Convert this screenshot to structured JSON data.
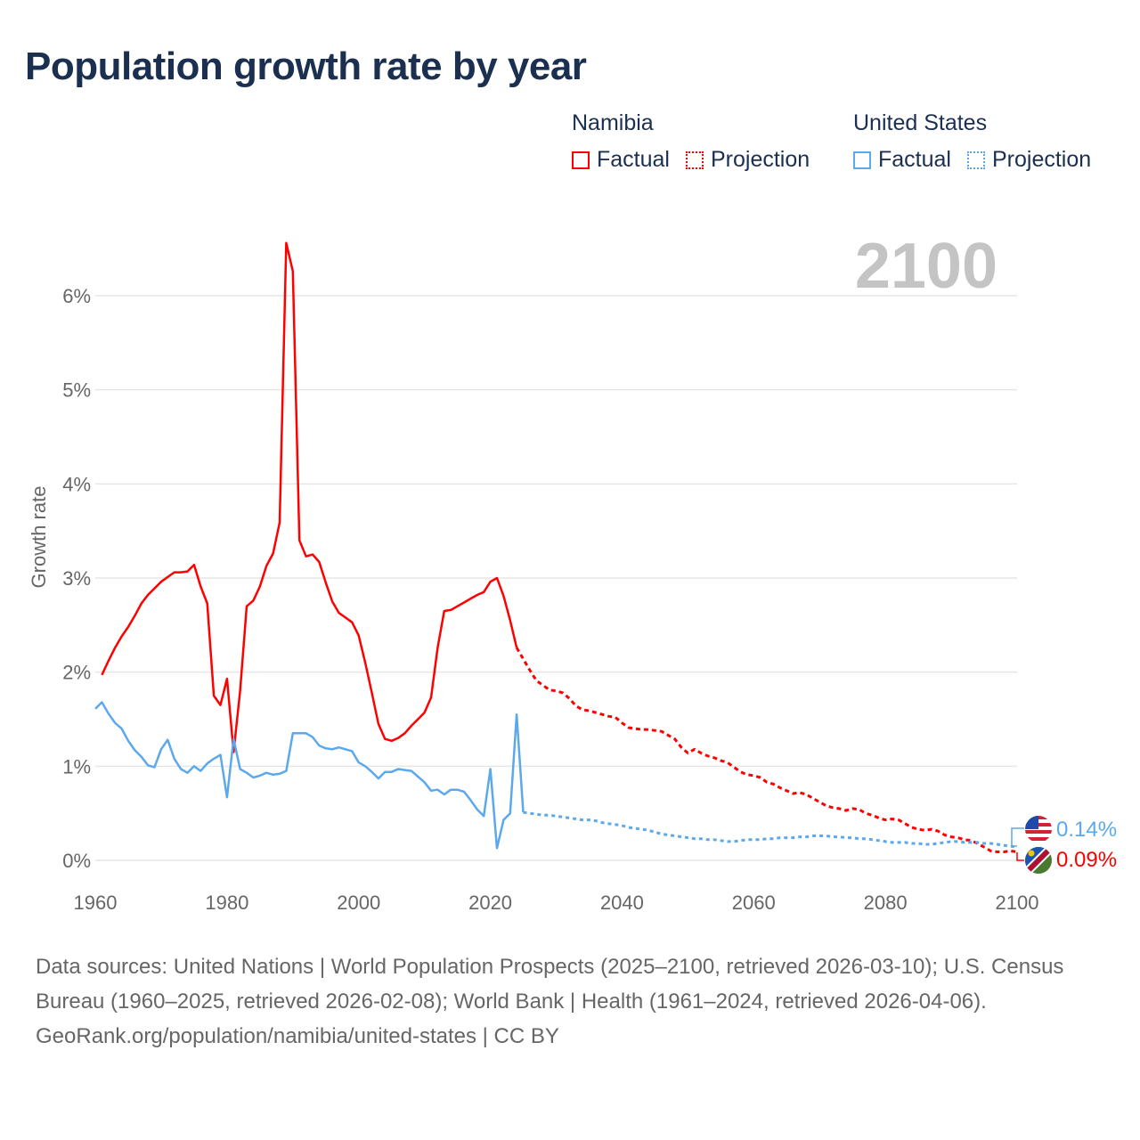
{
  "title": "Population growth rate by year",
  "legend": {
    "groups": [
      {
        "name": "Namibia",
        "factual": "Factual",
        "projection": "Projection",
        "color": "#ff0000"
      },
      {
        "name": "United States",
        "factual": "Factual",
        "projection": "Projection",
        "color": "#5ca8ec"
      }
    ]
  },
  "year_watermark": "2100",
  "end_labels": {
    "us": "0.14%",
    "namibia": "0.09%"
  },
  "footer": {
    "sources": "Data sources: United Nations | World Population Prospects (2025–2100, retrieved 2026-03-10); U.S. Census Bureau (1960–2025, retrieved 2026-02-08); World Bank | Health (1961–2024, retrieved 2026-04-06).",
    "credit": "GeoRank.org/population/namibia/united-states | CC BY"
  },
  "chart_data": {
    "type": "line",
    "title": "Population growth rate by year",
    "xlabel": "",
    "ylabel": "Growth rate",
    "xlim": [
      1960,
      2100
    ],
    "ylim": [
      0,
      6.6
    ],
    "x_ticks": [
      "1960",
      "1980",
      "2000",
      "2020",
      "2040",
      "2060",
      "2080",
      "2100"
    ],
    "y_ticks": [
      "0%",
      "1%",
      "2%",
      "3%",
      "4%",
      "5%",
      "6%"
    ],
    "grid": true,
    "legend_position": "top-right",
    "series": [
      {
        "name": "Namibia Factual",
        "color": "#ff0000",
        "style": "solid",
        "start_year": 1961,
        "values": [
          1.97,
          2.12,
          2.26,
          2.38,
          2.48,
          2.6,
          2.73,
          2.82,
          2.89,
          2.96,
          3.01,
          3.06,
          3.06,
          3.07,
          3.14,
          2.91,
          2.73,
          1.75,
          1.65,
          1.93,
          1.15,
          1.8,
          2.7,
          2.76,
          2.91,
          3.13,
          3.26,
          3.59,
          6.56,
          6.26,
          3.4,
          3.23,
          3.25,
          3.17,
          2.95,
          2.75,
          2.63,
          2.58,
          2.53,
          2.39,
          2.1,
          1.78,
          1.45,
          1.29,
          1.27,
          1.3,
          1.35,
          1.43,
          1.5,
          1.57,
          1.73,
          2.26,
          2.65,
          2.66,
          2.7,
          2.74,
          2.78,
          2.82,
          2.85,
          2.96,
          3.0,
          2.81,
          2.55,
          2.26
        ]
      },
      {
        "name": "Namibia Projection",
        "color": "#ff0000",
        "style": "dashed",
        "start_year": 2024,
        "values": [
          2.26,
          2.14,
          2.02,
          1.91,
          1.86,
          1.81,
          1.8,
          1.78,
          1.72,
          1.64,
          1.6,
          1.59,
          1.57,
          1.55,
          1.53,
          1.52,
          1.46,
          1.41,
          1.4,
          1.39,
          1.39,
          1.38,
          1.37,
          1.33,
          1.29,
          1.2,
          1.14,
          1.18,
          1.14,
          1.11,
          1.09,
          1.06,
          1.04,
          0.99,
          0.94,
          0.91,
          0.9,
          0.88,
          0.83,
          0.81,
          0.77,
          0.74,
          0.71,
          0.72,
          0.7,
          0.66,
          0.62,
          0.58,
          0.56,
          0.55,
          0.53,
          0.55,
          0.54,
          0.5,
          0.48,
          0.45,
          0.43,
          0.44,
          0.43,
          0.39,
          0.35,
          0.33,
          0.32,
          0.33,
          0.31,
          0.27,
          0.25,
          0.24,
          0.22,
          0.21,
          0.18,
          0.14,
          0.1,
          0.09,
          0.09,
          0.1,
          0.09
        ]
      },
      {
        "name": "United States Factual",
        "color": "#5ca8ec",
        "style": "solid",
        "start_year": 1960,
        "values": [
          1.61,
          1.68,
          1.56,
          1.46,
          1.4,
          1.27,
          1.17,
          1.1,
          1.01,
          0.99,
          1.18,
          1.28,
          1.08,
          0.97,
          0.93,
          1.0,
          0.95,
          1.03,
          1.08,
          1.12,
          0.67,
          1.29,
          0.97,
          0.93,
          0.88,
          0.9,
          0.93,
          0.91,
          0.92,
          0.95,
          1.35,
          1.35,
          1.35,
          1.31,
          1.22,
          1.19,
          1.18,
          1.2,
          1.18,
          1.16,
          1.04,
          1.0,
          0.94,
          0.87,
          0.94,
          0.94,
          0.97,
          0.96,
          0.95,
          0.89,
          0.83,
          0.74,
          0.75,
          0.7,
          0.75,
          0.75,
          0.73,
          0.64,
          0.54,
          0.47,
          0.97,
          0.13,
          0.43,
          0.5,
          1.55,
          0.51
        ]
      },
      {
        "name": "United States Projection",
        "color": "#5ca8ec",
        "style": "dotted",
        "start_year": 2025,
        "values": [
          0.51,
          0.5,
          0.49,
          0.48,
          0.48,
          0.47,
          0.46,
          0.45,
          0.44,
          0.43,
          0.43,
          0.42,
          0.4,
          0.39,
          0.38,
          0.37,
          0.35,
          0.34,
          0.33,
          0.32,
          0.3,
          0.28,
          0.27,
          0.26,
          0.25,
          0.24,
          0.23,
          0.23,
          0.22,
          0.22,
          0.21,
          0.2,
          0.2,
          0.21,
          0.22,
          0.22,
          0.22,
          0.23,
          0.23,
          0.24,
          0.24,
          0.24,
          0.25,
          0.25,
          0.26,
          0.26,
          0.26,
          0.25,
          0.25,
          0.24,
          0.24,
          0.23,
          0.23,
          0.22,
          0.21,
          0.2,
          0.19,
          0.19,
          0.19,
          0.18,
          0.18,
          0.17,
          0.17,
          0.18,
          0.19,
          0.2,
          0.2,
          0.19,
          0.19,
          0.19,
          0.18,
          0.18,
          0.17,
          0.16,
          0.15,
          0.14
        ]
      }
    ]
  }
}
